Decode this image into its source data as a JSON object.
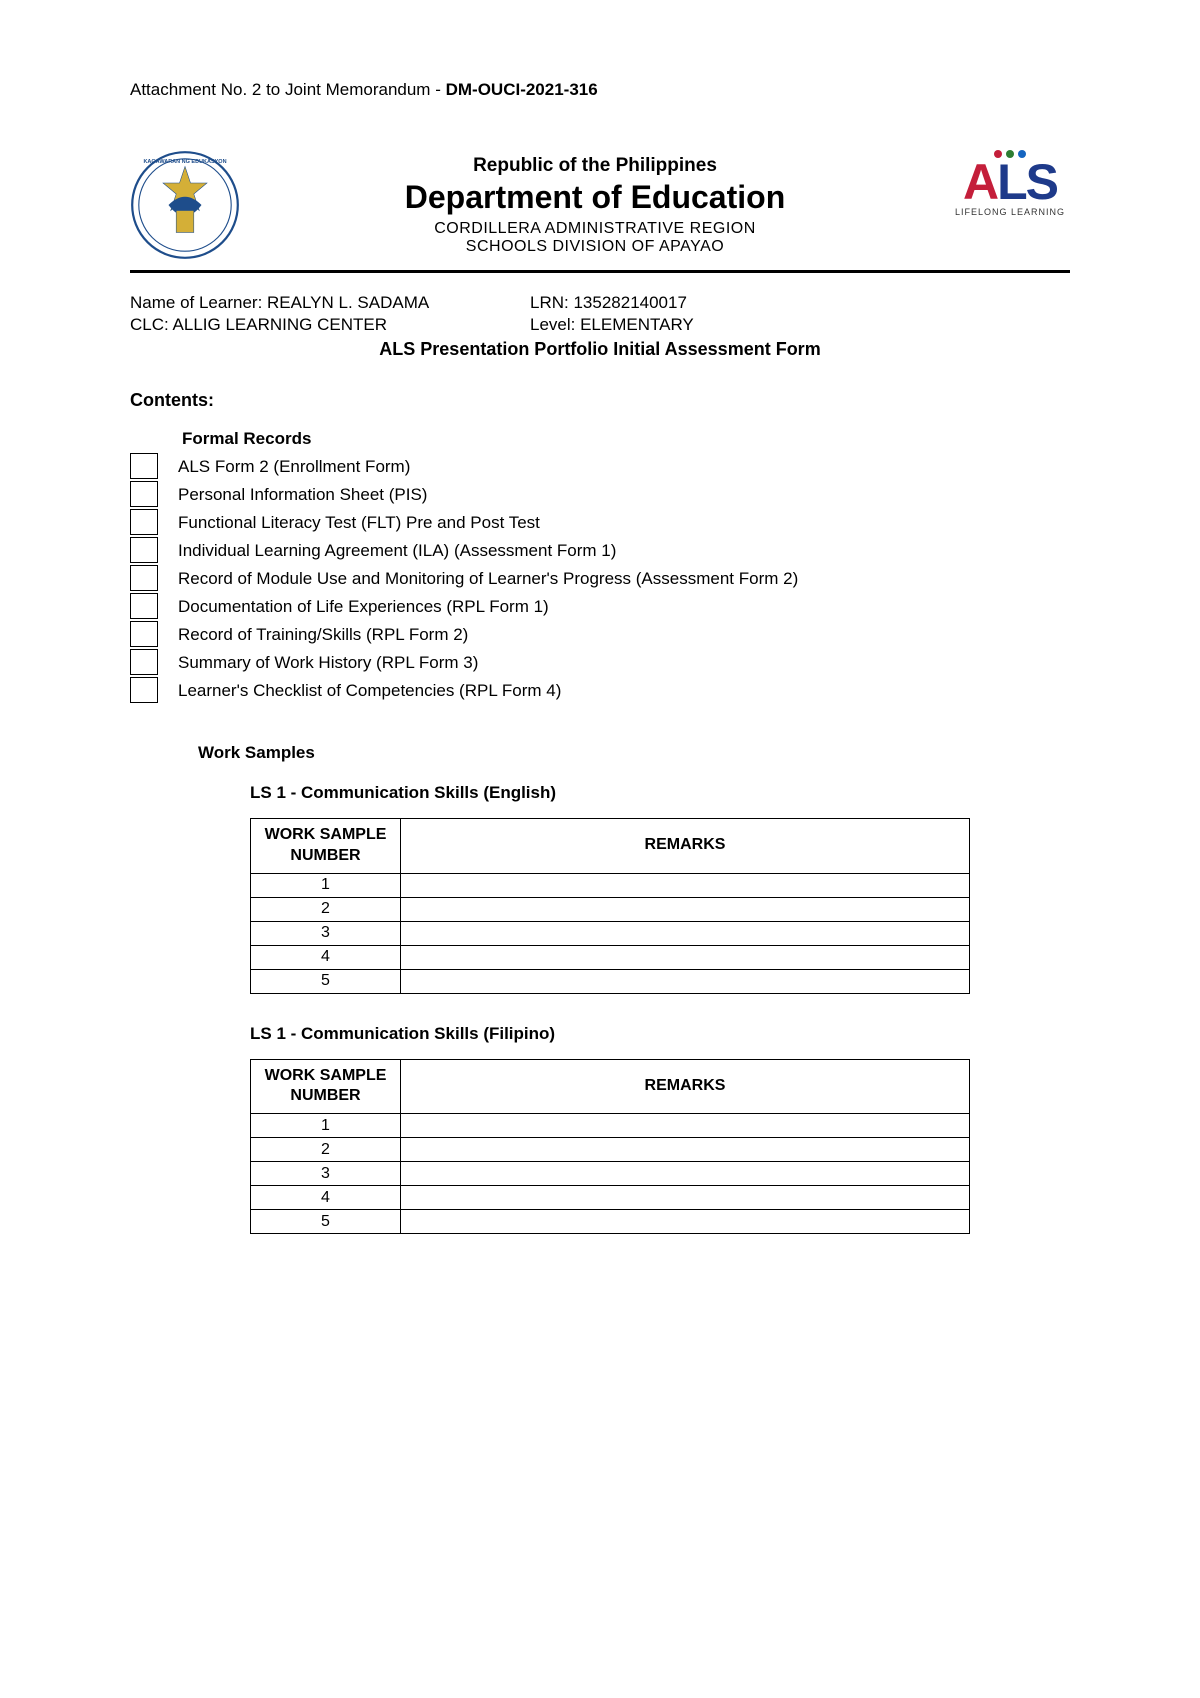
{
  "attachment": {
    "prefix": "Attachment No. 2 to Joint Memorandum - ",
    "code": "DM-OUCI-2021-316"
  },
  "header": {
    "republic": "Republic of the Philippines",
    "department": "Department of Education",
    "region": "CORDILLERA ADMINISTRATIVE REGION",
    "division": "SCHOOLS DIVISION OF APAYAO",
    "als_logo": {
      "dot_colors": [
        "#c41e3a",
        "#2e7d32",
        "#1565c0"
      ],
      "letters": [
        "A",
        "L",
        "S"
      ],
      "tagline": "LIFELONG LEARNING"
    }
  },
  "learner": {
    "name_label": "Name of Learner: ",
    "name": "REALYN L. SADAMA",
    "lrn_label": "LRN: ",
    "lrn": "135282140017",
    "clc_label": "CLC: ",
    "clc": "ALLIG LEARNING CENTER",
    "level_label": "Level: ",
    "level": "ELEMENTARY"
  },
  "form_title": "ALS Presentation Portfolio Initial Assessment Form",
  "contents_heading": "Contents:",
  "formal_records": {
    "heading": "Formal Records",
    "items": [
      "ALS Form 2 (Enrollment Form)",
      "Personal Information Sheet (PIS)",
      "Functional Literacy Test (FLT) Pre and Post Test",
      "Individual Learning Agreement (ILA) (Assessment Form 1)",
      "Record of Module Use and Monitoring of Learner's Progress (Assessment Form 2)",
      "Documentation of Life Experiences (RPL Form 1)",
      "Record of Training/Skills (RPL Form 2)",
      "Summary of Work History (RPL Form 3)",
      "Learner's Checklist of Competencies (RPL Form 4)"
    ]
  },
  "work_samples": {
    "heading": "Work Samples",
    "table_headers": {
      "number": "WORK SAMPLE NUMBER",
      "remarks": "REMARKS"
    },
    "sections": [
      {
        "title": "LS 1 - Communication Skills (English)",
        "rows": [
          "1",
          "2",
          "3",
          "4",
          "5"
        ]
      },
      {
        "title": "LS 1 - Communication Skills (Filipino)",
        "rows": [
          "1",
          "2",
          "3",
          "4",
          "5"
        ]
      }
    ]
  },
  "colors": {
    "text": "#000000",
    "background": "#ffffff",
    "border": "#000000",
    "seal_blue": "#1e4d8b",
    "seal_gold": "#d4af37"
  }
}
